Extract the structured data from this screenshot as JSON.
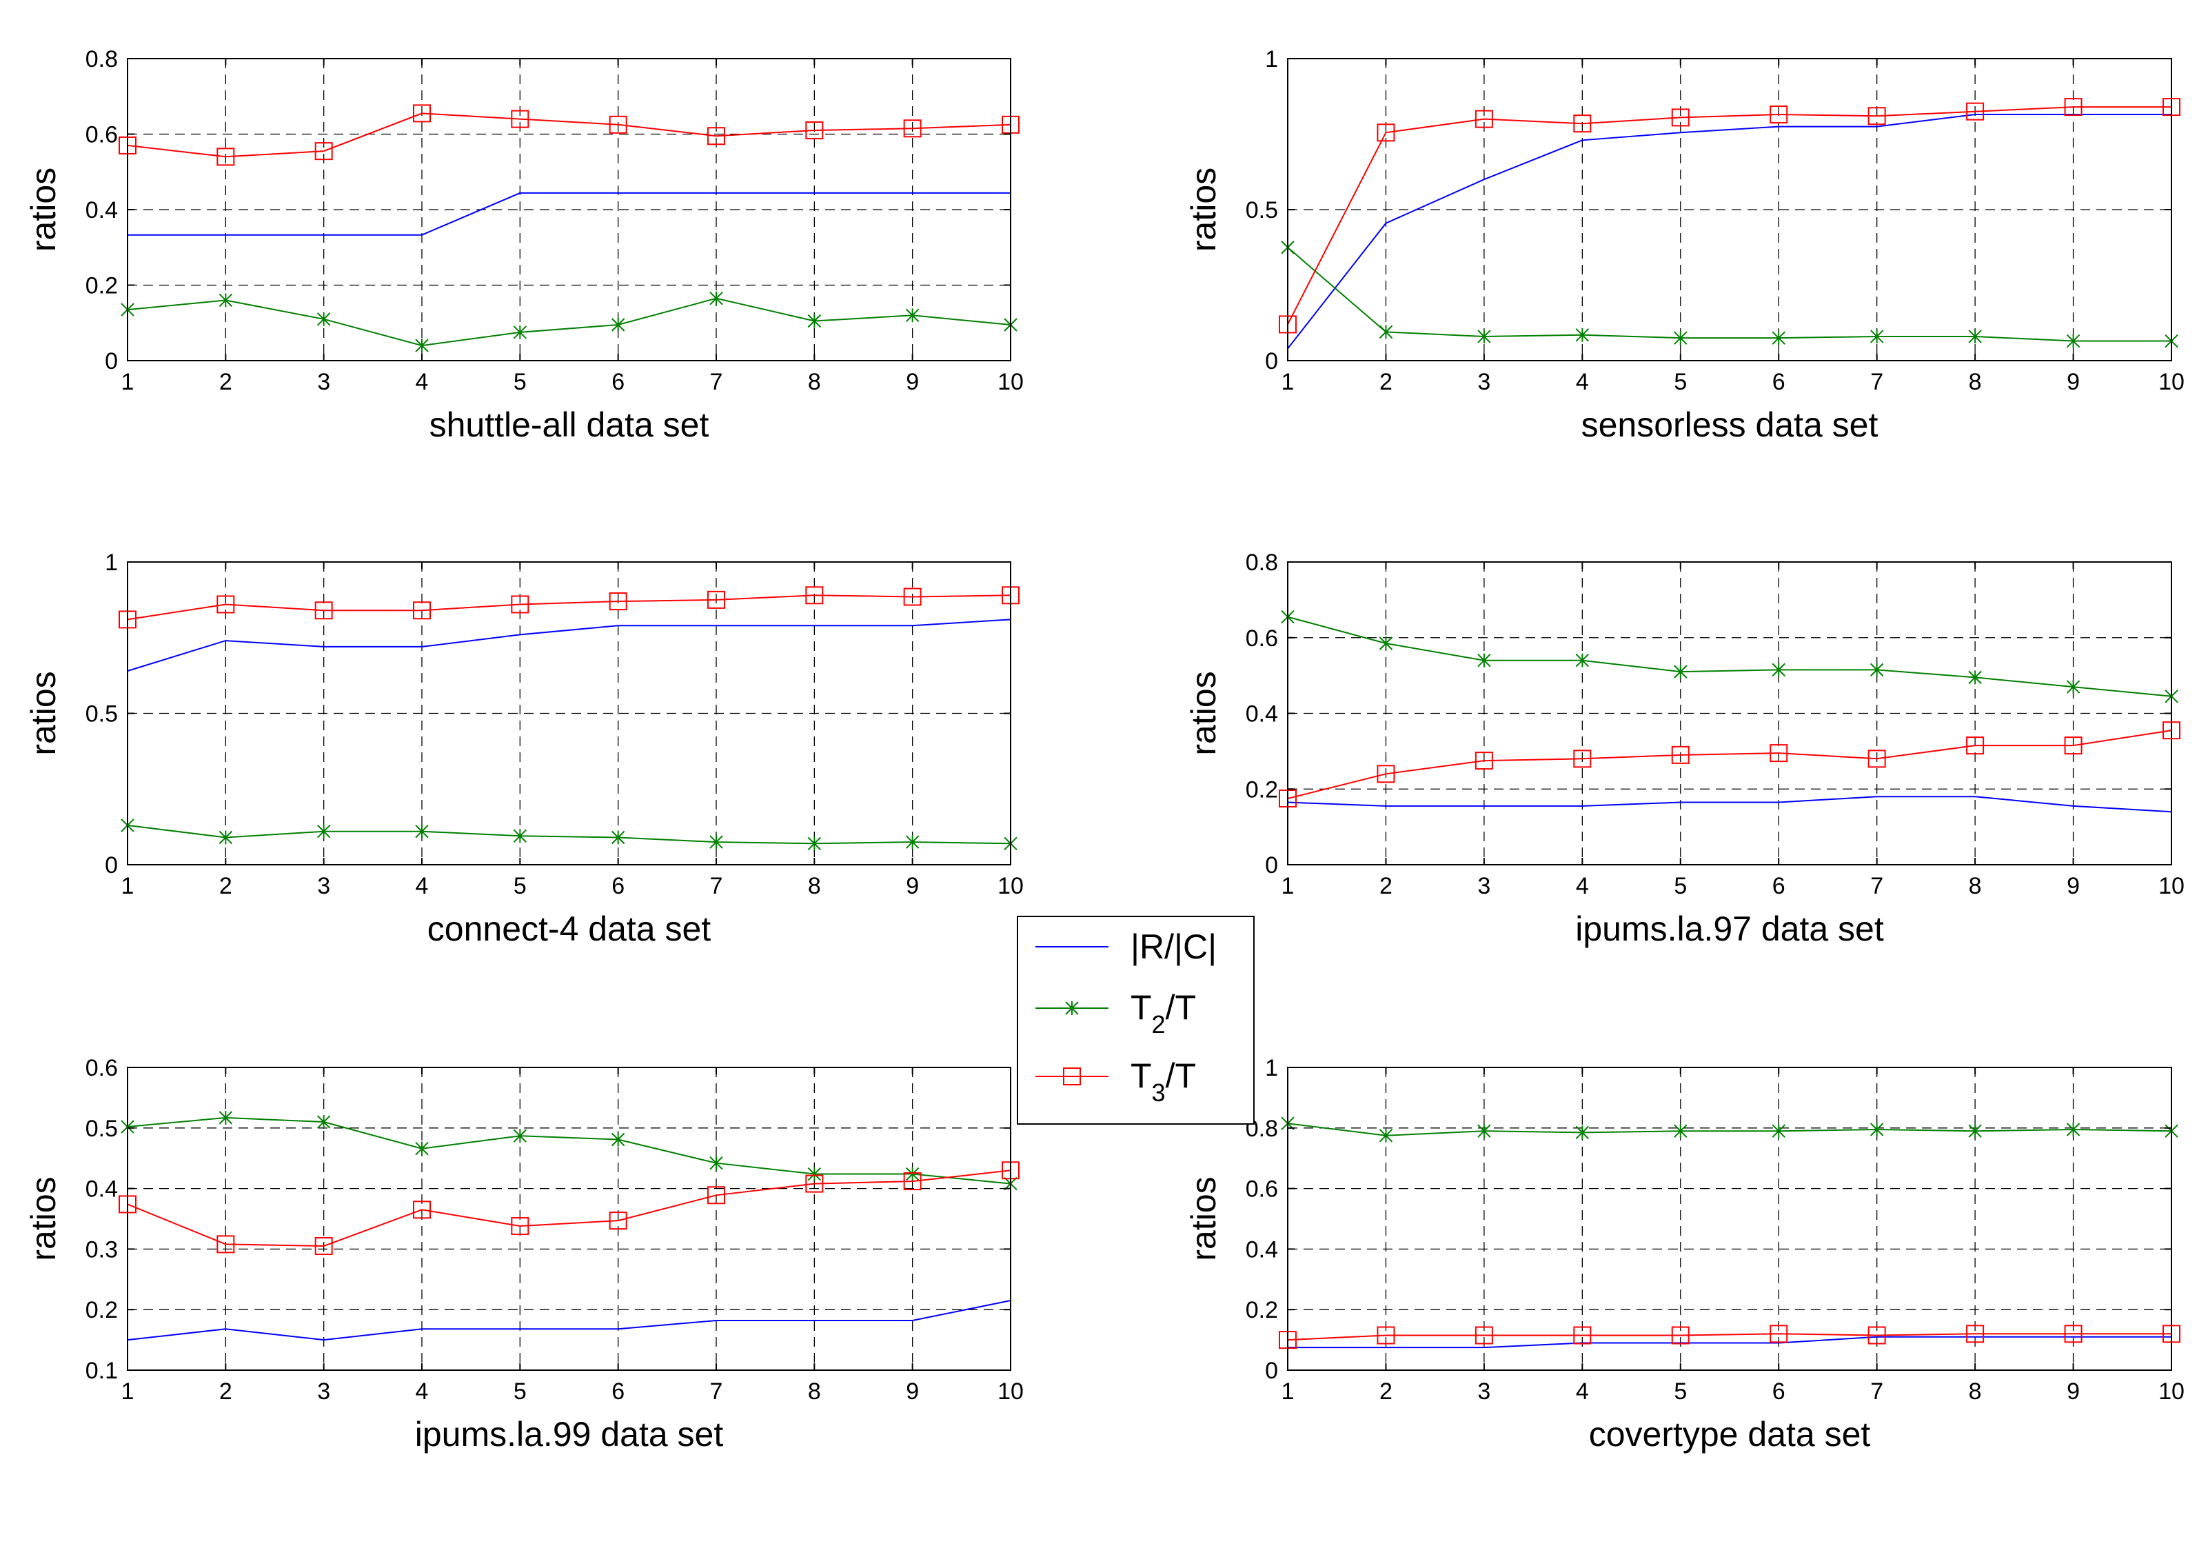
{
  "colors": {
    "rc": "#0000ff",
    "t2": "#008000",
    "t3": "#ff0000",
    "axis": "#000000",
    "grid": "#000000"
  },
  "legend": {
    "rc_label": "|R/|C|",
    "t2_main": "T",
    "t2_sub": "2",
    "t2_tail": "/T",
    "t3_main": "T",
    "t3_sub": "3",
    "t3_tail": "/T"
  },
  "chart_data": [
    {
      "type": "line",
      "title": "",
      "xlabel": "shuttle-all data set",
      "ylabel": "ratios",
      "x": [
        1,
        2,
        3,
        4,
        5,
        6,
        7,
        8,
        9,
        10
      ],
      "xlim": [
        1,
        10
      ],
      "ylim": [
        0,
        0.8
      ],
      "yticks": [
        0,
        0.2,
        0.4,
        0.6,
        0.8
      ],
      "ytick_labels": [
        "0",
        "0.2",
        "0.4",
        "0.6",
        "0.8"
      ],
      "grid": true,
      "series": [
        {
          "name": "|R/|C|",
          "values": [
            0.333,
            0.333,
            0.333,
            0.333,
            0.444,
            0.444,
            0.444,
            0.444,
            0.444,
            0.444
          ]
        },
        {
          "name": "T2/T",
          "values": [
            0.135,
            0.16,
            0.11,
            0.04,
            0.075,
            0.095,
            0.165,
            0.105,
            0.12,
            0.095
          ]
        },
        {
          "name": "T3/T",
          "values": [
            0.57,
            0.54,
            0.555,
            0.655,
            0.64,
            0.625,
            0.595,
            0.61,
            0.615,
            0.625
          ]
        }
      ]
    },
    {
      "type": "line",
      "title": "",
      "xlabel": "sensorless data set",
      "ylabel": "ratios",
      "x": [
        1,
        2,
        3,
        4,
        5,
        6,
        7,
        8,
        9,
        10
      ],
      "xlim": [
        1,
        10
      ],
      "ylim": [
        0,
        1
      ],
      "yticks": [
        0,
        0.5,
        1
      ],
      "ytick_labels": [
        "0",
        "0.5",
        "1"
      ],
      "grid": true,
      "series": [
        {
          "name": "|R/|C|",
          "values": [
            0.04,
            0.455,
            0.6,
            0.73,
            0.755,
            0.775,
            0.775,
            0.815,
            0.815,
            0.815
          ]
        },
        {
          "name": "T2/T",
          "values": [
            0.375,
            0.095,
            0.08,
            0.085,
            0.075,
            0.075,
            0.08,
            0.08,
            0.065,
            0.065
          ]
        },
        {
          "name": "T3/T",
          "values": [
            0.12,
            0.755,
            0.8,
            0.785,
            0.805,
            0.815,
            0.81,
            0.825,
            0.84,
            0.84
          ]
        }
      ]
    },
    {
      "type": "line",
      "title": "",
      "xlabel": "connect-4 data set",
      "ylabel": "ratios",
      "x": [
        1,
        2,
        3,
        4,
        5,
        6,
        7,
        8,
        9,
        10
      ],
      "xlim": [
        1,
        10
      ],
      "ylim": [
        0,
        1
      ],
      "yticks": [
        0,
        0.5,
        1
      ],
      "ytick_labels": [
        "0",
        "0.5",
        "1"
      ],
      "grid": true,
      "series": [
        {
          "name": "|R/|C|",
          "values": [
            0.64,
            0.74,
            0.72,
            0.72,
            0.76,
            0.79,
            0.79,
            0.79,
            0.79,
            0.81
          ]
        },
        {
          "name": "T2/T",
          "values": [
            0.13,
            0.09,
            0.11,
            0.11,
            0.095,
            0.09,
            0.075,
            0.07,
            0.075,
            0.07
          ]
        },
        {
          "name": "T3/T",
          "values": [
            0.81,
            0.86,
            0.84,
            0.84,
            0.86,
            0.87,
            0.875,
            0.89,
            0.885,
            0.89
          ]
        }
      ]
    },
    {
      "type": "line",
      "title": "",
      "xlabel": "ipums.la.97 data set",
      "ylabel": "ratios",
      "x": [
        1,
        2,
        3,
        4,
        5,
        6,
        7,
        8,
        9,
        10
      ],
      "xlim": [
        1,
        10
      ],
      "ylim": [
        0,
        0.8
      ],
      "yticks": [
        0,
        0.2,
        0.4,
        0.6,
        0.8
      ],
      "ytick_labels": [
        "0",
        "0.2",
        "0.4",
        "0.6",
        "0.8"
      ],
      "grid": true,
      "series": [
        {
          "name": "|R/|C|",
          "values": [
            0.165,
            0.155,
            0.155,
            0.155,
            0.165,
            0.165,
            0.18,
            0.18,
            0.155,
            0.14
          ]
        },
        {
          "name": "T2/T",
          "values": [
            0.655,
            0.585,
            0.54,
            0.54,
            0.51,
            0.515,
            0.515,
            0.495,
            0.47,
            0.445
          ]
        },
        {
          "name": "T3/T",
          "values": [
            0.175,
            0.24,
            0.275,
            0.28,
            0.29,
            0.295,
            0.28,
            0.315,
            0.315,
            0.355
          ]
        }
      ]
    },
    {
      "type": "line",
      "title": "",
      "xlabel": "ipums.la.99 data set",
      "ylabel": "ratios",
      "x": [
        1,
        2,
        3,
        4,
        5,
        6,
        7,
        8,
        9,
        10
      ],
      "xlim": [
        1,
        10
      ],
      "ylim": [
        0.1,
        0.6
      ],
      "yticks": [
        0.1,
        0.2,
        0.3,
        0.4,
        0.5,
        0.6
      ],
      "ytick_labels": [
        "0.1",
        "0.2",
        "0.3",
        "0.4",
        "0.5",
        "0.6"
      ],
      "grid": true,
      "series": [
        {
          "name": "|R/|C|",
          "values": [
            0.15,
            0.168,
            0.15,
            0.168,
            0.168,
            0.168,
            0.182,
            0.182,
            0.182,
            0.215
          ]
        },
        {
          "name": "T2/T",
          "values": [
            0.502,
            0.517,
            0.51,
            0.466,
            0.487,
            0.481,
            0.442,
            0.424,
            0.424,
            0.408
          ]
        },
        {
          "name": "T3/T",
          "values": [
            0.374,
            0.308,
            0.305,
            0.365,
            0.338,
            0.347,
            0.389,
            0.408,
            0.412,
            0.43
          ]
        }
      ]
    },
    {
      "type": "line",
      "title": "",
      "xlabel": "covertype data set",
      "ylabel": "ratios",
      "x": [
        1,
        2,
        3,
        4,
        5,
        6,
        7,
        8,
        9,
        10
      ],
      "xlim": [
        1,
        10
      ],
      "ylim": [
        0,
        1
      ],
      "yticks": [
        0,
        0.2,
        0.4,
        0.6,
        0.8,
        1
      ],
      "ytick_labels": [
        "0",
        "0.2",
        "0.4",
        "0.6",
        "0.8",
        "1"
      ],
      "grid": true,
      "series": [
        {
          "name": "|R/|C|",
          "values": [
            0.075,
            0.075,
            0.075,
            0.09,
            0.09,
            0.09,
            0.11,
            0.11,
            0.11,
            0.11
          ]
        },
        {
          "name": "T2/T",
          "values": [
            0.815,
            0.775,
            0.79,
            0.785,
            0.79,
            0.79,
            0.795,
            0.79,
            0.795,
            0.79
          ]
        },
        {
          "name": "T3/T",
          "values": [
            0.1,
            0.115,
            0.115,
            0.115,
            0.115,
            0.12,
            0.115,
            0.12,
            0.12,
            0.12
          ]
        }
      ]
    }
  ]
}
